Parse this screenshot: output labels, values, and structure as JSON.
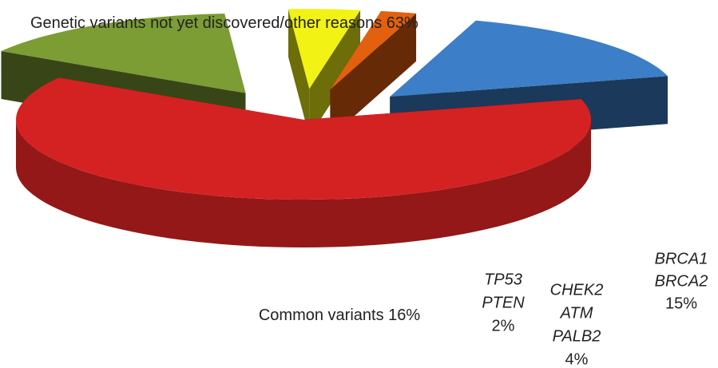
{
  "chart_data": {
    "type": "pie3d",
    "categories": [
      [
        "Genetic variants not yet discovered/other reasons"
      ],
      [
        "BRCA1",
        "BRCA2"
      ],
      [
        "CHEK2",
        "ATM",
        "PALB2"
      ],
      [
        "TP53",
        "PTEN"
      ],
      [
        "Common variants"
      ]
    ],
    "values": [
      63,
      15,
      4,
      2,
      16
    ],
    "value_labels": [
      "63%",
      "15%",
      "4%",
      "2%",
      "16%"
    ],
    "colors": [
      "#d42222",
      "#7c9c34",
      "#f2f214",
      "#e2600e",
      "#3c7ec8"
    ]
  }
}
